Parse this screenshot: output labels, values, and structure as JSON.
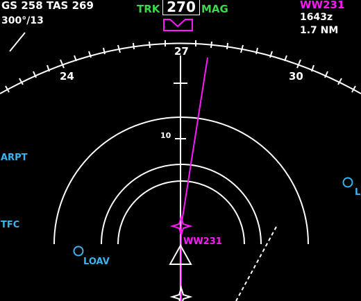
{
  "speeds": {
    "text": "GS 258  TAS 269"
  },
  "wind": {
    "text": "300°/13"
  },
  "heading": {
    "trk_label": "TRK",
    "value": "270",
    "mag_label": "MAG"
  },
  "active_waypoint": {
    "name": "WW231",
    "eta": "1643z",
    "distance": "1.7 NM"
  },
  "compass": {
    "left_label": "24",
    "center_label": "27",
    "right_label": "30"
  },
  "range": {
    "ring_label": "10"
  },
  "map_symbols": {
    "arpt_label": "ARPT",
    "tfc_label": "TFC",
    "loav_label": "LOAV",
    "edge_label": "L",
    "waypoint_label": "WW231"
  },
  "colors": {
    "white": "#ffffff",
    "green": "#3bd84a",
    "magenta": "#ff19ff",
    "cyan": "#38b6f0",
    "background": "#000000"
  }
}
